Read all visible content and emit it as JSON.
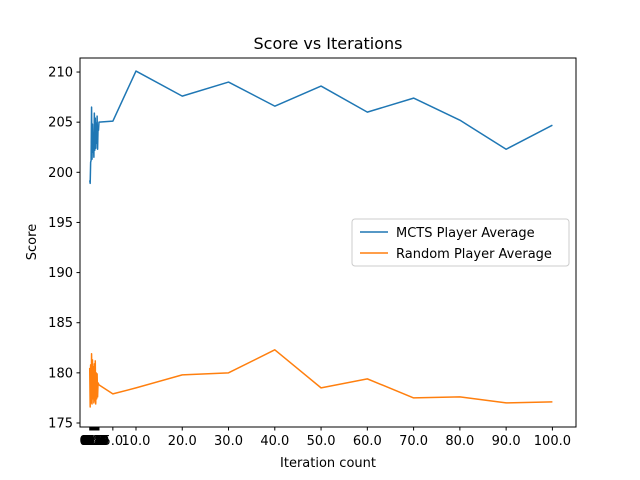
{
  "chart_data": {
    "type": "line",
    "title": "Score vs Iterations",
    "xlabel": "Iteration count",
    "ylabel": "Score",
    "xlim": [
      -2.1,
      105.1
    ],
    "ylim": [
      174.6,
      211.4
    ],
    "grid": false,
    "legend_position": "center-right",
    "x_ticks": [
      "0.0",
      "0.1",
      "0.2",
      "0.3",
      "0.4",
      "0.5",
      "0.6",
      "0.7",
      "0.8",
      "0.9",
      "1.0",
      "1.1",
      "1.2",
      "1.3",
      "1.4",
      "1.5",
      "1.6",
      "1.7",
      "1.8",
      "1.9",
      "2.0",
      "5.0",
      "10.0",
      "20.0",
      "30.0",
      "40.0",
      "50.0",
      "60.0",
      "70.0",
      "80.0",
      "90.0",
      "100.0"
    ],
    "y_ticks": [
      175,
      180,
      185,
      190,
      195,
      200,
      205,
      210
    ],
    "x": [
      0.0,
      0.1,
      0.2,
      0.3,
      0.4,
      0.5,
      0.6,
      0.7,
      0.8,
      0.9,
      1.0,
      1.1,
      1.2,
      1.3,
      1.4,
      1.5,
      1.6,
      1.7,
      1.8,
      1.9,
      2.0,
      5.0,
      10.0,
      20.0,
      30.0,
      40.0,
      50.0,
      60.0,
      70.0,
      80.0,
      90.0,
      100.0
    ],
    "series": [
      {
        "name": "MCTS Player Average",
        "color": "#1f77b4",
        "values": [
          199.2,
          198.9,
          201.0,
          201.2,
          206.5,
          201.3,
          204.8,
          202.0,
          203.1,
          201.5,
          205.9,
          202.2,
          205.4,
          202.4,
          204.9,
          202.9,
          205.6,
          202.3,
          204.4,
          204.2,
          205.0,
          205.1,
          210.1,
          207.6,
          209.0,
          206.6,
          208.6,
          206.0,
          207.4,
          205.2,
          202.3,
          204.7
        ]
      },
      {
        "name": "Random Player Average",
        "color": "#ff7f0e",
        "values": [
          180.5,
          176.6,
          180.8,
          177.0,
          181.9,
          176.9,
          181.3,
          177.4,
          180.6,
          177.0,
          180.9,
          177.2,
          181.2,
          176.9,
          180.0,
          177.4,
          179.9,
          177.6,
          179.0,
          178.9,
          178.8,
          177.9,
          178.5,
          179.8,
          180.0,
          182.3,
          178.5,
          179.4,
          177.5,
          177.6,
          177.0,
          177.1
        ]
      }
    ]
  }
}
